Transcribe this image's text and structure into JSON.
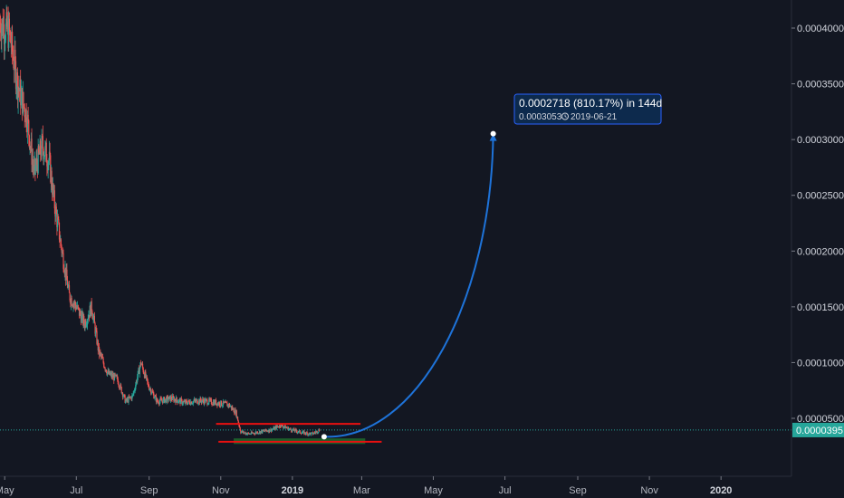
{
  "chart_data": {
    "type": "candlestick",
    "xlim": [
      "2018-04-27",
      "2020-03-01"
    ],
    "ylim": [
      0.0,
      0.00042
    ],
    "y_ticks": [
      "0.0000500",
      "0.0001000",
      "0.0001500",
      "0.0002000",
      "0.0002500",
      "0.0003000",
      "0.0003500",
      "0.0004000"
    ],
    "x_ticks": [
      {
        "date": "2018-05-01",
        "label": "May",
        "bold": false
      },
      {
        "date": "2018-07-01",
        "label": "Jul",
        "bold": false
      },
      {
        "date": "2018-09-01",
        "label": "Sep",
        "bold": false
      },
      {
        "date": "2018-11-01",
        "label": "Nov",
        "bold": false
      },
      {
        "date": "2019-01-01",
        "label": "2019",
        "bold": true
      },
      {
        "date": "2019-03-01",
        "label": "Mar",
        "bold": false
      },
      {
        "date": "2019-05-01",
        "label": "May",
        "bold": false
      },
      {
        "date": "2019-07-01",
        "label": "Jul",
        "bold": false
      },
      {
        "date": "2019-09-01",
        "label": "Sep",
        "bold": false
      },
      {
        "date": "2019-11-01",
        "label": "Nov",
        "bold": false
      },
      {
        "date": "2020-01-01",
        "label": "2020",
        "bold": true
      }
    ],
    "price_path": [
      [
        "2018-04-27",
        0.000405
      ],
      [
        "2018-05-05",
        0.000395
      ],
      [
        "2018-05-12",
        0.00035
      ],
      [
        "2018-05-20",
        0.00032
      ],
      [
        "2018-05-26",
        0.00027
      ],
      [
        "2018-06-02",
        0.000295
      ],
      [
        "2018-06-08",
        0.00028
      ],
      [
        "2018-06-12",
        0.000245
      ],
      [
        "2018-06-18",
        0.000205
      ],
      [
        "2018-06-25",
        0.00016
      ],
      [
        "2018-07-01",
        0.00015
      ],
      [
        "2018-07-08",
        0.000135
      ],
      [
        "2018-07-14",
        0.00015
      ],
      [
        "2018-07-20",
        0.00011
      ],
      [
        "2018-07-28",
        9e-05
      ],
      [
        "2018-08-05",
        8.5e-05
      ],
      [
        "2018-08-12",
        6.5e-05
      ],
      [
        "2018-08-18",
        7e-05
      ],
      [
        "2018-08-25",
        0.0001
      ],
      [
        "2018-08-31",
        8e-05
      ],
      [
        "2018-09-08",
        6.5e-05
      ],
      [
        "2018-09-20",
        6.8e-05
      ],
      [
        "2018-10-01",
        6.4e-05
      ],
      [
        "2018-10-15",
        6.6e-05
      ],
      [
        "2018-10-28",
        6.4e-05
      ],
      [
        "2018-11-08",
        6.2e-05
      ],
      [
        "2018-11-14",
        5.5e-05
      ],
      [
        "2018-11-18",
        3.8e-05
      ],
      [
        "2018-11-25",
        3.6e-05
      ],
      [
        "2018-12-05",
        3.8e-05
      ],
      [
        "2018-12-15",
        4e-05
      ],
      [
        "2018-12-22",
        4.4e-05
      ],
      [
        "2018-12-30",
        4e-05
      ],
      [
        "2019-01-10",
        3.7e-05
      ],
      [
        "2019-01-18",
        3.6e-05
      ],
      [
        "2019-01-24",
        3.95e-05
      ]
    ],
    "lines": [
      {
        "color": "#e81010",
        "y": 4.5e-05,
        "x1": "2018-10-28",
        "x2": "2019-02-28"
      },
      {
        "color": "#e81010",
        "y": 2.9e-05,
        "x1": "2018-10-30",
        "x2": "2019-03-18"
      }
    ],
    "zone": {
      "color": "#1f6b2c",
      "y1": 3.2e-05,
      "y2": 2.7e-05,
      "x1": "2018-11-12",
      "x2": "2019-03-04"
    },
    "projection": {
      "from": [
        "2019-01-28",
        3.35e-05
      ],
      "to": [
        "2019-06-21",
        0.0003053
      ],
      "color": "#1e73d9"
    },
    "current_price": {
      "value": 3.95e-05,
      "label": "0.0000395",
      "color": "#26a69a"
    },
    "annotation": {
      "line1": "0.0002718 (810.17%) in 144d",
      "line2_price": "0.0003053",
      "line2_date": "2019-06-21",
      "icon": "clock-icon",
      "bg": "#0d2a4d",
      "border": "#2962ff"
    },
    "colors": {
      "up": "#26a69a",
      "down": "#ef5350",
      "background": "#131722"
    }
  }
}
